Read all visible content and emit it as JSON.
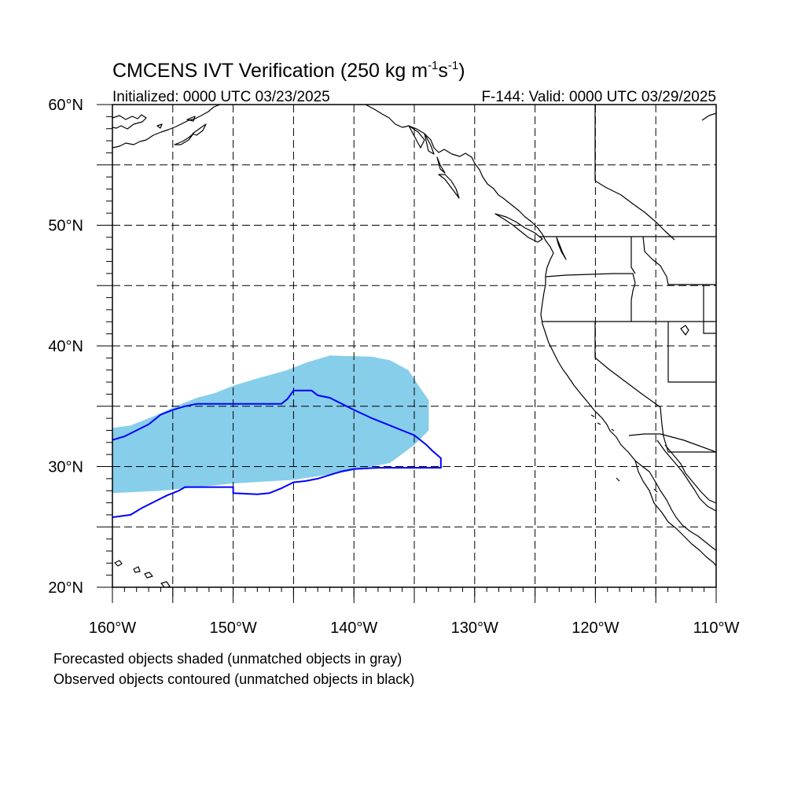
{
  "title": {
    "main": "CMCENS IVT Verification (250 kg m",
    "exp1": "-1",
    "mid": "s",
    "exp2": "-1",
    "end": ")"
  },
  "init_label": "Initialized: 0000 UTC 03/23/2025",
  "valid_label": "F-144: Valid: 0000 UTC 03/29/2025",
  "lat_labels": [
    "60°N",
    "50°N",
    "40°N",
    "30°N",
    "20°N"
  ],
  "lon_labels": [
    "160°W",
    "150°W",
    "140°W",
    "130°W",
    "120°W",
    "110°W"
  ],
  "captions": [
    "Forecasted objects shaded (unmatched objects in gray)",
    "Observed objects contoured (unmatched objects in black)"
  ],
  "colors": {
    "forecast_fill": "#87ceeb",
    "observed_contour": "#0000ff",
    "coastline": "#000000",
    "grid": "#000000"
  },
  "map_extent": {
    "lon": [
      -160,
      -110
    ],
    "lat": [
      20,
      60
    ]
  },
  "chart_data": {
    "type": "map",
    "title": "CMCENS IVT Verification (250 kg m-1s-1)",
    "grid": {
      "dashed": true,
      "lon_step": 5,
      "lat_step": 5
    },
    "objects": [
      {
        "name": "forecast",
        "style": "shaded",
        "color": "#87ceeb",
        "outline": [
          [
            -160,
            27.8
          ],
          [
            -156,
            28.0
          ],
          [
            -150,
            28.6
          ],
          [
            -145,
            28.9
          ],
          [
            -141,
            29.5
          ],
          [
            -137,
            30.3
          ],
          [
            -135,
            31.8
          ],
          [
            -133.8,
            33.0
          ],
          [
            -133.8,
            35.5
          ],
          [
            -134.5,
            36.5
          ],
          [
            -135.5,
            38.0
          ],
          [
            -137.0,
            38.8
          ],
          [
            -138.5,
            39.1
          ],
          [
            -142.0,
            39.2
          ],
          [
            -144.0,
            38.6
          ],
          [
            -145.5,
            38.0
          ],
          [
            -148.0,
            37.3
          ],
          [
            -150.0,
            36.7
          ],
          [
            -151.5,
            36.1
          ],
          [
            -153.0,
            35.7
          ],
          [
            -154.5,
            35.1
          ],
          [
            -156.5,
            34.2
          ],
          [
            -158.5,
            33.4
          ],
          [
            -160,
            33.2
          ]
        ]
      },
      {
        "name": "observed",
        "style": "contour",
        "color": "#0000ff",
        "outline": [
          [
            -160,
            32.2
          ],
          [
            -159,
            32.5
          ],
          [
            -158,
            33.0
          ],
          [
            -157,
            33.5
          ],
          [
            -156,
            34.3
          ],
          [
            -155,
            34.7
          ],
          [
            -154,
            35.0
          ],
          [
            -153,
            35.2
          ],
          [
            -151,
            35.2
          ],
          [
            -148,
            35.2
          ],
          [
            -146,
            35.2
          ],
          [
            -145.5,
            35.6
          ],
          [
            -145,
            36.3
          ],
          [
            -143.5,
            36.3
          ],
          [
            -143,
            35.9
          ],
          [
            -142,
            35.7
          ],
          [
            -141,
            35.2
          ],
          [
            -140,
            34.7
          ],
          [
            -138.5,
            34.0
          ],
          [
            -137,
            33.4
          ],
          [
            -136,
            33.0
          ],
          [
            -135,
            32.6
          ],
          [
            -134,
            31.8
          ],
          [
            -133.5,
            31.3
          ],
          [
            -132.8,
            30.7
          ],
          [
            -132.8,
            29.9
          ],
          [
            -135,
            29.9
          ],
          [
            -138,
            29.9
          ],
          [
            -140,
            29.8
          ],
          [
            -141,
            29.6
          ],
          [
            -142,
            29.3
          ],
          [
            -143,
            29.0
          ],
          [
            -144,
            28.8
          ],
          [
            -145,
            28.7
          ],
          [
            -146,
            28.2
          ],
          [
            -147,
            27.8
          ],
          [
            -148,
            27.7
          ],
          [
            -150,
            27.8
          ],
          [
            -150,
            28.3
          ],
          [
            -152,
            28.3
          ],
          [
            -154,
            28.3
          ],
          [
            -154.5,
            28.0
          ],
          [
            -155.5,
            27.6
          ],
          [
            -156.5,
            27.1
          ],
          [
            -157.5,
            26.6
          ],
          [
            -158.5,
            26.0
          ],
          [
            -160,
            25.8
          ]
        ]
      }
    ]
  }
}
